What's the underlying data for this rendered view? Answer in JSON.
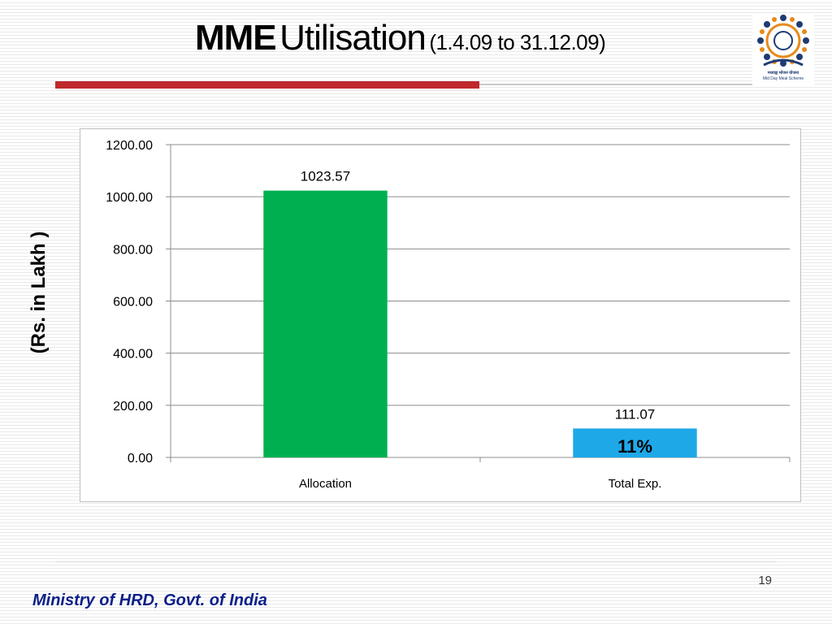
{
  "slide": {
    "title_bold": "MME",
    "title_main": "Utilisation",
    "title_sub": "(1.4.09 to 31.12.09)",
    "logo_line1": "मध्याह्न भोजन योजना",
    "logo_line2": "Mid Day Meal Scheme",
    "page_number": "19",
    "footer": "Ministry of HRD, Govt. of India",
    "colors": {
      "rule_red": "#c0282d",
      "footer_blue": "#0b1f8a"
    }
  },
  "chart_data": {
    "type": "bar",
    "categories": [
      "Allocation",
      "Total Exp."
    ],
    "values": [
      1023.57,
      111.07
    ],
    "value_labels": [
      "1023.57",
      "111.07"
    ],
    "bar_colors": [
      "#00b050",
      "#1fa8e8"
    ],
    "annotations": [
      {
        "category": "Total Exp.",
        "text": "11%"
      }
    ],
    "ylabel": "(Rs. in Lakh )",
    "xlabel": "",
    "ylim": [
      0,
      1200
    ],
    "yticks": [
      "0.00",
      "200.00",
      "400.00",
      "600.00",
      "800.00",
      "1000.00",
      "1200.00"
    ],
    "grid": true,
    "legend": "none"
  }
}
